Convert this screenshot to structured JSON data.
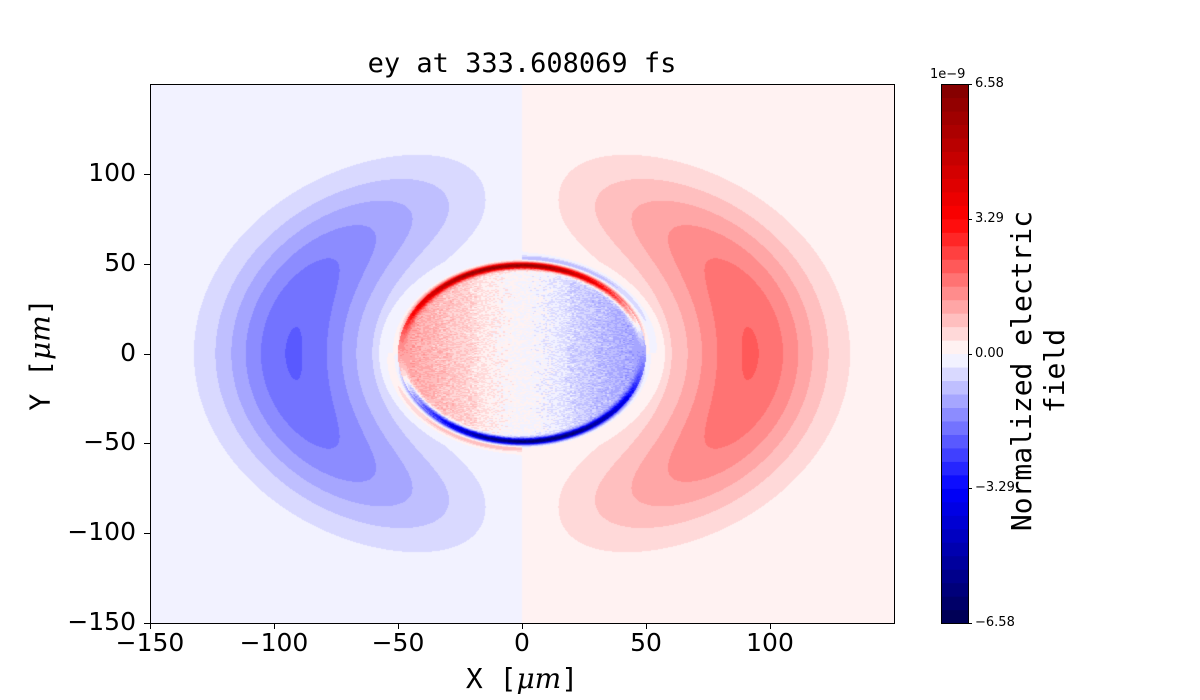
{
  "chart_data": {
    "type": "heatmap",
    "subtype": "filled-contour",
    "title": "ey at 333.608069 fs",
    "xlabel_prefix": "X [",
    "xlabel_unit": "μm",
    "xlabel_suffix": "]",
    "ylabel_prefix": "Y [",
    "ylabel_unit": "μm",
    "ylabel_suffix": "]",
    "xlim": [
      -150,
      150
    ],
    "ylim": [
      -150,
      150
    ],
    "xticks": [
      -150,
      -100,
      -50,
      0,
      50,
      100
    ],
    "xtick_labels": [
      "−150",
      "−100",
      "−50",
      "0",
      "50",
      "100"
    ],
    "yticks": [
      100,
      50,
      0,
      -50,
      -100,
      -150
    ],
    "ytick_labels": [
      "100",
      "50",
      "0",
      "−50",
      "−100",
      "−150"
    ],
    "colormap": "seismic",
    "colorbar": {
      "label": "Normalized electric field",
      "exponent": "1e−9",
      "range": [
        -6.58,
        6.58
      ],
      "levels": 40,
      "ticks": [
        6.58,
        3.29,
        0.0,
        -3.29,
        -6.58
      ],
      "tick_labels": [
        "6.58",
        "3.29",
        "0.00",
        "−3.29",
        "−6.58"
      ]
    },
    "features": {
      "outer_lobes": {
        "center_x": [
          -92,
          92
        ],
        "peak_value": [
          -2.0,
          2.0
        ],
        "radial_width": 30
      },
      "inner_disc": {
        "radius": 50,
        "left_value": 1.3,
        "right_value": -1.3
      },
      "disc_rim": {
        "top_value": 6.0,
        "bottom_value": -6.0
      }
    }
  }
}
